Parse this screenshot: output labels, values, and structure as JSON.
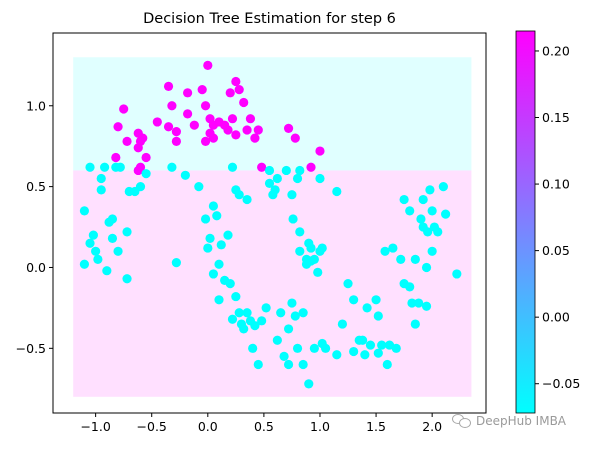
{
  "chart_data": {
    "type": "scatter",
    "title": "Decision Tree Estimation for step 6",
    "xlabel": "",
    "ylabel": "",
    "xlim": [
      -1.38,
      2.48
    ],
    "ylim": [
      -0.9,
      1.45
    ],
    "xticks": [
      -1.0,
      -0.5,
      0.0,
      0.5,
      1.0,
      1.5,
      2.0
    ],
    "xtick_labels": [
      "−1.0",
      "−0.5",
      "0.0",
      "0.5",
      "1.0",
      "1.5",
      "2.0"
    ],
    "yticks": [
      -0.5,
      0.0,
      0.5,
      1.0
    ],
    "ytick_labels": [
      "−0.5",
      "0.0",
      "0.5",
      "1.0"
    ],
    "grid": false,
    "colormap": "cool",
    "low_color": "#00ffff",
    "high_color": "#ff00ff",
    "regions": [
      {
        "x": [
          -1.2,
          2.35
        ],
        "y": [
          0.6,
          1.3
        ],
        "value": -0.07
      },
      {
        "x": [
          -1.2,
          2.35
        ],
        "y": [
          -0.8,
          0.6
        ],
        "value": 0.215
      }
    ],
    "colorbar": {
      "range": [
        -0.072,
        0.215
      ],
      "ticks": [
        -0.05,
        0.0,
        0.05,
        0.1,
        0.15,
        0.2
      ],
      "tick_labels": [
        "−0.05",
        "0.00",
        "0.05",
        "0.10",
        "0.15",
        "0.20"
      ]
    },
    "series": [
      {
        "color_value": 0.215,
        "points": [
          [
            -0.75,
            0.98
          ],
          [
            -0.8,
            0.87
          ],
          [
            -0.82,
            0.68
          ],
          [
            -0.72,
            0.78
          ],
          [
            -0.62,
            0.83
          ],
          [
            -0.6,
            0.78
          ],
          [
            -0.62,
            0.74
          ],
          [
            -0.58,
            0.8
          ],
          [
            -0.6,
            0.62
          ],
          [
            -0.55,
            0.68
          ],
          [
            -0.62,
            0.6
          ],
          [
            -0.45,
            0.9
          ],
          [
            -0.35,
            1.12
          ],
          [
            -0.32,
            1.0
          ],
          [
            -0.35,
            0.87
          ],
          [
            -0.28,
            0.84
          ],
          [
            -0.28,
            0.78
          ],
          [
            -0.18,
            0.95
          ],
          [
            -0.12,
            0.88
          ],
          [
            -0.18,
            1.08
          ],
          [
            -0.05,
            1.1
          ],
          [
            -0.02,
            1.0
          ],
          [
            0.0,
            1.25
          ],
          [
            0.02,
            0.92
          ],
          [
            0.05,
            0.88
          ],
          [
            0.02,
            0.83
          ],
          [
            -0.02,
            0.78
          ],
          [
            0.05,
            0.8
          ],
          [
            0.1,
            0.9
          ],
          [
            0.15,
            0.88
          ],
          [
            0.2,
            1.08
          ],
          [
            0.25,
            1.15
          ],
          [
            0.28,
            1.1
          ],
          [
            0.22,
            0.92
          ],
          [
            0.18,
            0.85
          ],
          [
            0.25,
            0.82
          ],
          [
            0.32,
            1.02
          ],
          [
            0.35,
            0.85
          ],
          [
            0.38,
            0.92
          ],
          [
            0.45,
            0.85
          ],
          [
            0.42,
            0.8
          ],
          [
            0.48,
            0.62
          ],
          [
            0.72,
            0.86
          ],
          [
            0.78,
            0.8
          ],
          [
            0.92,
            0.62
          ],
          [
            1.0,
            0.72
          ]
        ]
      },
      {
        "color_value": -0.072,
        "points": [
          [
            -1.1,
            0.35
          ],
          [
            -1.1,
            0.02
          ],
          [
            -1.05,
            0.62
          ],
          [
            -1.05,
            0.15
          ],
          [
            -1.02,
            0.2
          ],
          [
            -1.0,
            0.1
          ],
          [
            -0.98,
            0.05
          ],
          [
            -0.95,
            0.55
          ],
          [
            -0.95,
            0.48
          ],
          [
            -0.92,
            0.62
          ],
          [
            -0.9,
            -0.02
          ],
          [
            -0.88,
            0.28
          ],
          [
            -0.85,
            0.18
          ],
          [
            -0.85,
            0.3
          ],
          [
            -0.82,
            0.62
          ],
          [
            -0.78,
            0.62
          ],
          [
            -0.8,
            0.1
          ],
          [
            -0.72,
            0.22
          ],
          [
            -0.72,
            -0.07
          ],
          [
            -0.7,
            0.47
          ],
          [
            -0.65,
            0.47
          ],
          [
            -0.6,
            0.5
          ],
          [
            -0.55,
            0.58
          ],
          [
            -0.32,
            0.62
          ],
          [
            -0.28,
            0.03
          ],
          [
            -0.2,
            0.57
          ],
          [
            -0.08,
            0.5
          ],
          [
            -0.02,
            0.3
          ],
          [
            0.0,
            0.12
          ],
          [
            0.02,
            0.18
          ],
          [
            0.05,
            0.38
          ],
          [
            0.05,
            -0.04
          ],
          [
            0.08,
            0.32
          ],
          [
            0.1,
            0.02
          ],
          [
            0.1,
            -0.2
          ],
          [
            0.12,
            0.14
          ],
          [
            0.15,
            -0.08
          ],
          [
            0.18,
            0.2
          ],
          [
            0.2,
            -0.1
          ],
          [
            0.22,
            0.62
          ],
          [
            0.22,
            -0.32
          ],
          [
            0.25,
            0.48
          ],
          [
            0.25,
            -0.18
          ],
          [
            0.28,
            0.45
          ],
          [
            0.28,
            -0.28
          ],
          [
            0.3,
            -0.35
          ],
          [
            0.32,
            -0.38
          ],
          [
            0.35,
            0.42
          ],
          [
            0.35,
            -0.28
          ],
          [
            0.38,
            -0.33
          ],
          [
            0.4,
            -0.5
          ],
          [
            0.42,
            -0.36
          ],
          [
            0.45,
            -0.6
          ],
          [
            0.48,
            -0.33
          ],
          [
            0.52,
            -0.25
          ],
          [
            0.55,
            0.6
          ],
          [
            0.55,
            0.52
          ],
          [
            0.58,
            0.45
          ],
          [
            0.6,
            0.48
          ],
          [
            0.62,
            0.55
          ],
          [
            0.62,
            -0.45
          ],
          [
            0.65,
            -0.28
          ],
          [
            0.68,
            -0.55
          ],
          [
            0.7,
            0.6
          ],
          [
            0.72,
            -0.6
          ],
          [
            0.72,
            -0.38
          ],
          [
            0.75,
            0.45
          ],
          [
            0.75,
            -0.22
          ],
          [
            0.76,
            0.3
          ],
          [
            0.78,
            -0.3
          ],
          [
            0.8,
            0.55
          ],
          [
            0.8,
            -0.5
          ],
          [
            0.82,
            0.6
          ],
          [
            0.82,
            0.22
          ],
          [
            0.82,
            0.1
          ],
          [
            0.85,
            -0.28
          ],
          [
            0.85,
            -0.6
          ],
          [
            0.88,
            0.02
          ],
          [
            0.88,
            0.05
          ],
          [
            0.9,
            0.15
          ],
          [
            0.9,
            -0.72
          ],
          [
            0.92,
            0.12
          ],
          [
            0.92,
            0.04
          ],
          [
            0.95,
            0.05
          ],
          [
            0.95,
            -0.5
          ],
          [
            0.98,
            -0.03
          ],
          [
            1.0,
            0.1
          ],
          [
            1.0,
            0.55
          ],
          [
            1.02,
            0.12
          ],
          [
            1.02,
            -0.47
          ],
          [
            1.05,
            -0.5
          ],
          [
            1.15,
            0.47
          ],
          [
            1.15,
            -0.54
          ],
          [
            1.2,
            -0.35
          ],
          [
            1.25,
            -0.1
          ],
          [
            1.3,
            -0.2
          ],
          [
            1.3,
            -0.52
          ],
          [
            1.35,
            -0.45
          ],
          [
            1.38,
            -0.45
          ],
          [
            1.4,
            -0.54
          ],
          [
            1.42,
            -0.25
          ],
          [
            1.45,
            -0.48
          ],
          [
            1.5,
            -0.2
          ],
          [
            1.52,
            -0.3
          ],
          [
            1.52,
            -0.53
          ],
          [
            1.55,
            -0.48
          ],
          [
            1.58,
            0.1
          ],
          [
            1.6,
            -0.6
          ],
          [
            1.62,
            -0.48
          ],
          [
            1.65,
            0.12
          ],
          [
            1.68,
            -0.5
          ],
          [
            1.72,
            0.05
          ],
          [
            1.75,
            0.42
          ],
          [
            1.75,
            -0.1
          ],
          [
            1.8,
            0.35
          ],
          [
            1.8,
            -0.12
          ],
          [
            1.82,
            -0.22
          ],
          [
            1.85,
            0.05
          ],
          [
            1.85,
            -0.35
          ],
          [
            1.88,
            -0.22
          ],
          [
            1.9,
            0.3
          ],
          [
            1.92,
            0.42
          ],
          [
            1.92,
            0.25
          ],
          [
            1.95,
            0.0
          ],
          [
            1.95,
            -0.24
          ],
          [
            1.96,
            0.22
          ],
          [
            1.98,
            0.48
          ],
          [
            2.0,
            0.35
          ],
          [
            2.0,
            0.1
          ],
          [
            2.02,
            0.25
          ],
          [
            2.05,
            0.22
          ],
          [
            2.1,
            0.5
          ],
          [
            2.12,
            0.33
          ],
          [
            2.22,
            -0.04
          ]
        ]
      }
    ]
  },
  "watermark": {
    "text": "DeepHub IMBA"
  }
}
